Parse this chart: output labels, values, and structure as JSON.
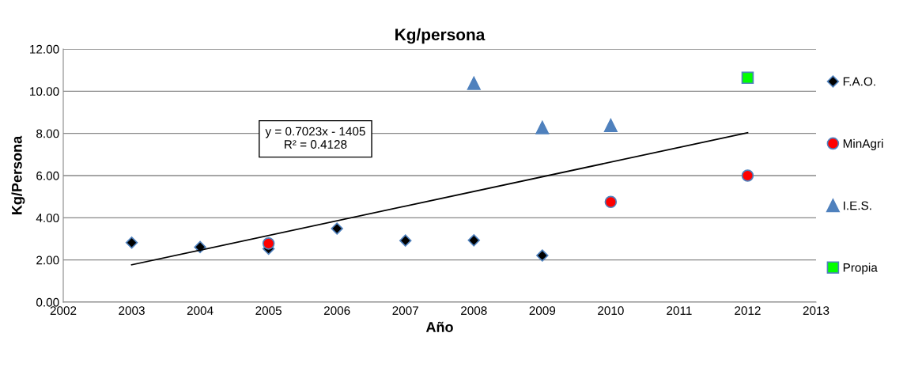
{
  "chart_data": {
    "type": "scatter",
    "title": "Kg/persona",
    "xlabel": "Año",
    "ylabel": "Kg/Persona",
    "xlim": [
      2002,
      2013
    ],
    "xticks": [
      2002,
      2003,
      2004,
      2005,
      2006,
      2007,
      2008,
      2009,
      2010,
      2011,
      2012,
      2013
    ],
    "ylim": [
      0,
      12
    ],
    "yticks": [
      {
        "value": 0,
        "label": "0.00"
      },
      {
        "value": 2,
        "label": "2.00"
      },
      {
        "value": 4,
        "label": "4.00"
      },
      {
        "value": 6,
        "label": "6.00"
      },
      {
        "value": 8,
        "label": "8.00"
      },
      {
        "value": 10,
        "label": "10.00"
      },
      {
        "value": 12,
        "label": "12.00"
      }
    ],
    "grid": "y",
    "legend": "right",
    "annotations": [
      "y = 0.7023x - 1405\nR² = 0.4128"
    ],
    "series": [
      {
        "name": "F.A.O.",
        "color": "#000000",
        "marker": "diamond",
        "x": [
          2003,
          2004,
          2005,
          2006,
          2007,
          2008,
          2009
        ],
        "values": [
          2.82,
          2.61,
          2.53,
          3.49,
          2.92,
          2.93,
          2.21
        ]
      },
      {
        "name": "MinAgri",
        "color": "#ff0000",
        "marker": "circle",
        "x": [
          2005,
          2010,
          2012
        ],
        "values": [
          2.78,
          4.75,
          6.0
        ]
      },
      {
        "name": "I.E.S.",
        "color": "#4f81bd",
        "marker": "triangle",
        "x": [
          2008,
          2009,
          2010
        ],
        "values": [
          10.38,
          8.28,
          8.38
        ]
      },
      {
        "name": "Propia",
        "color": "#00ff00",
        "marker": "square",
        "x": [
          2012
        ],
        "values": [
          10.64
        ]
      },
      {
        "type": "line",
        "color": "#000000",
        "marker": "none",
        "x": [
          2003,
          2012
        ],
        "values": [
          1.77,
          8.03
        ]
      }
    ]
  }
}
